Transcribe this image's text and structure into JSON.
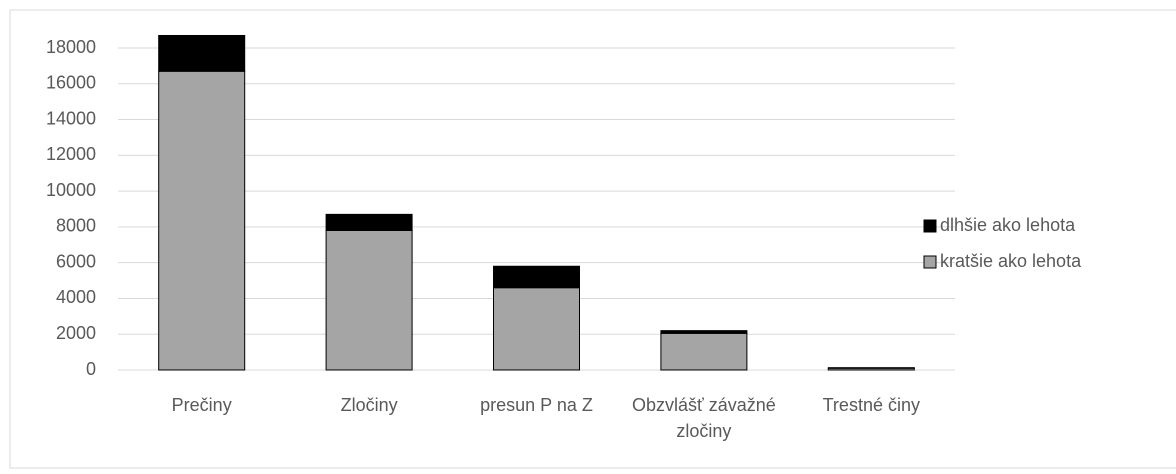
{
  "chart_data": {
    "type": "stacked_bar",
    "categories": [
      "Prečiny",
      "Zločiny",
      "presun P na Z",
      "Obzvlášť závažné zločiny",
      "Trestné činy"
    ],
    "series": [
      {
        "name": "kratšie ako lehota",
        "color": "#a5a5a5",
        "values": [
          16700,
          7800,
          4600,
          2050,
          100
        ]
      },
      {
        "name": "dlhšie ako lehota",
        "color": "#000000",
        "values": [
          2000,
          900,
          1200,
          150,
          30
        ]
      }
    ],
    "ylim": [
      0,
      18000
    ],
    "yticks": [
      0,
      2000,
      4000,
      6000,
      8000,
      10000,
      12000,
      14000,
      16000,
      18000
    ],
    "grid": true,
    "legend": "right"
  }
}
